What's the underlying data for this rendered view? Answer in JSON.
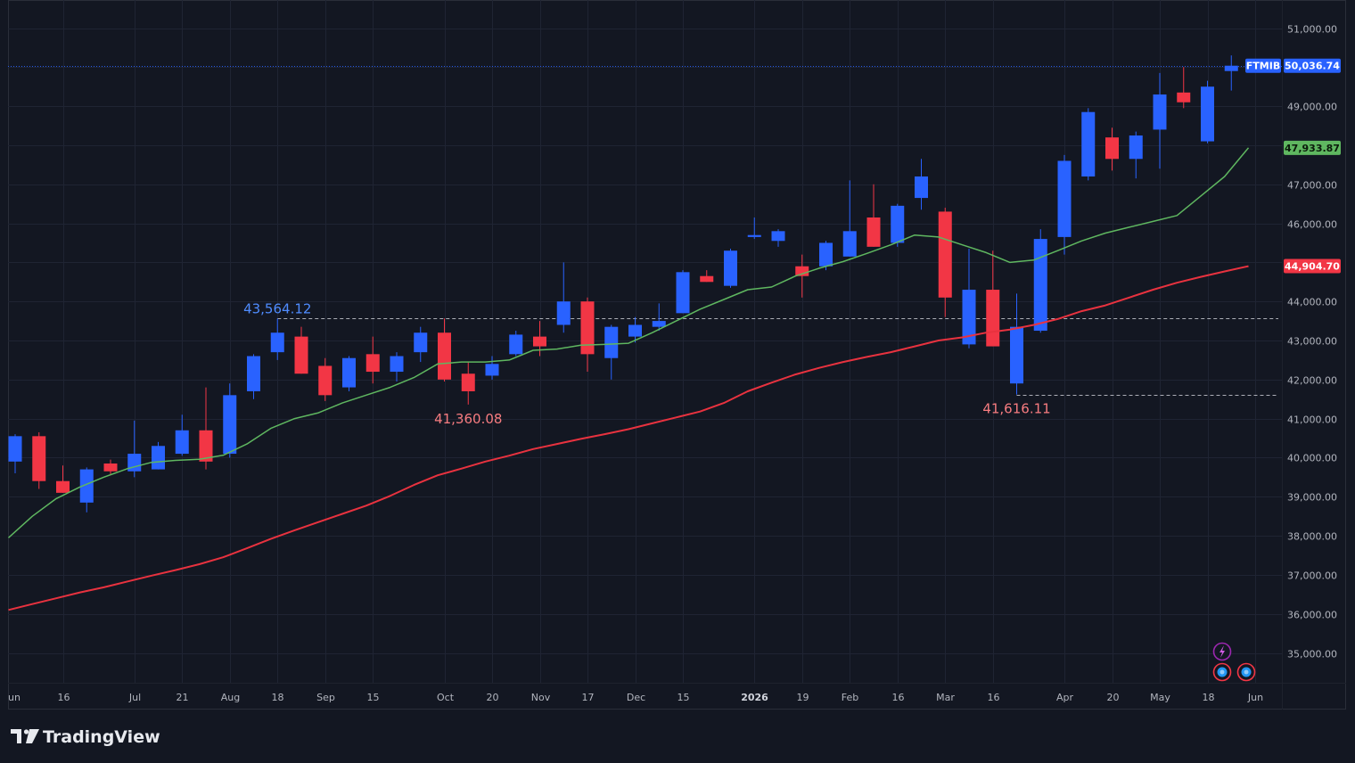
{
  "app": {
    "brand": "TradingView"
  },
  "colors": {
    "background": "#131722",
    "grid": "#1f2433",
    "up_candle": "#2962ff",
    "down_candle": "#f23645",
    "sma_fast": "#5fb760",
    "sma_slow": "#e8323f",
    "ref_line": "#c7c9d0",
    "high_label": "#4f8cff",
    "low_label": "#f77c80"
  },
  "chart_data": {
    "type": "candlestick",
    "symbol": "FTMIB",
    "interval": "weekly",
    "ylim": [
      34400,
      51800
    ],
    "y_ticks": [
      35000,
      36000,
      37000,
      38000,
      39000,
      40000,
      41000,
      42000,
      43000,
      44000,
      45000,
      46000,
      47000,
      48000,
      49000,
      50000,
      51000
    ],
    "y_tick_labels": [
      "35,000.00",
      "36,000.00",
      "37,000.00",
      "38,000.00",
      "39,000.00",
      "40,000.00",
      "41,000.00",
      "42,000.00",
      "43,000.00",
      "44,000.00",
      "45,000.00",
      "46,000.00",
      "47,000.00",
      "48,000.00",
      "49,000.00",
      "",
      "51,000.00"
    ],
    "x_ticks": [
      {
        "label": "un",
        "index": -0.25,
        "bold": false
      },
      {
        "label": "16",
        "index": 2,
        "bold": false
      },
      {
        "label": "Jul",
        "index": 5,
        "bold": false
      },
      {
        "label": "21",
        "index": 7,
        "bold": false
      },
      {
        "label": "Aug",
        "index": 9,
        "bold": false
      },
      {
        "label": "18",
        "index": 11,
        "bold": false
      },
      {
        "label": "Sep",
        "index": 13,
        "bold": false
      },
      {
        "label": "15",
        "index": 15,
        "bold": false
      },
      {
        "label": "Oct",
        "index": 18,
        "bold": false
      },
      {
        "label": "20",
        "index": 20,
        "bold": false
      },
      {
        "label": "Nov",
        "index": 22,
        "bold": false
      },
      {
        "label": "17",
        "index": 24,
        "bold": false
      },
      {
        "label": "Dec",
        "index": 26,
        "bold": false
      },
      {
        "label": "15",
        "index": 28,
        "bold": false
      },
      {
        "label": "2026",
        "index": 31,
        "bold": true
      },
      {
        "label": "19",
        "index": 33,
        "bold": false
      },
      {
        "label": "Feb",
        "index": 35,
        "bold": false
      },
      {
        "label": "16",
        "index": 37,
        "bold": false
      },
      {
        "label": "Mar",
        "index": 39,
        "bold": false
      },
      {
        "label": "16",
        "index": 41,
        "bold": false
      },
      {
        "label": "Apr",
        "index": 44,
        "bold": false
      },
      {
        "label": "20",
        "index": 46,
        "bold": false
      },
      {
        "label": "May",
        "index": 48,
        "bold": false
      },
      {
        "label": "18",
        "index": 50,
        "bold": false
      },
      {
        "label": "Jun",
        "index": 52,
        "bold": false
      }
    ],
    "candles": [
      {
        "o": 39900,
        "h": 40600,
        "l": 39600,
        "c": 40550
      },
      {
        "o": 40550,
        "h": 40650,
        "l": 39200,
        "c": 39400
      },
      {
        "o": 39400,
        "h": 39800,
        "l": 39100,
        "c": 39100
      },
      {
        "o": 38850,
        "h": 39750,
        "l": 38600,
        "c": 39700
      },
      {
        "o": 39850,
        "h": 39950,
        "l": 39550,
        "c": 39650
      },
      {
        "o": 39650,
        "h": 40950,
        "l": 39500,
        "c": 40100
      },
      {
        "o": 39700,
        "h": 40400,
        "l": 39700,
        "c": 40300
      },
      {
        "o": 40100,
        "h": 41100,
        "l": 40050,
        "c": 40700
      },
      {
        "o": 40700,
        "h": 41800,
        "l": 39700,
        "c": 39900
      },
      {
        "o": 40100,
        "h": 41900,
        "l": 40000,
        "c": 41600
      },
      {
        "o": 41700,
        "h": 42650,
        "l": 41500,
        "c": 42600
      },
      {
        "o": 42700,
        "h": 43564.12,
        "l": 42500,
        "c": 43200
      },
      {
        "o": 43100,
        "h": 43350,
        "l": 42150,
        "c": 42150
      },
      {
        "o": 42350,
        "h": 42550,
        "l": 41450,
        "c": 41600
      },
      {
        "o": 41800,
        "h": 42600,
        "l": 41700,
        "c": 42550
      },
      {
        "o": 42650,
        "h": 43100,
        "l": 41900,
        "c": 42200
      },
      {
        "o": 42200,
        "h": 42700,
        "l": 41950,
        "c": 42600
      },
      {
        "o": 42700,
        "h": 43350,
        "l": 42450,
        "c": 43200
      },
      {
        "o": 43200,
        "h": 43564.12,
        "l": 41950,
        "c": 42000
      },
      {
        "o": 42150,
        "h": 42450,
        "l": 41360.08,
        "c": 41700
      },
      {
        "o": 42100,
        "h": 42600,
        "l": 42000,
        "c": 42400
      },
      {
        "o": 42650,
        "h": 43250,
        "l": 42600,
        "c": 43150
      },
      {
        "o": 43100,
        "h": 43500,
        "l": 42600,
        "c": 42850
      },
      {
        "o": 43400,
        "h": 45000,
        "l": 43200,
        "c": 44000
      },
      {
        "o": 44000,
        "h": 44100,
        "l": 42200,
        "c": 42650
      },
      {
        "o": 42550,
        "h": 43400,
        "l": 42000,
        "c": 43350
      },
      {
        "o": 43100,
        "h": 43600,
        "l": 42950,
        "c": 43400
      },
      {
        "o": 43350,
        "h": 43950,
        "l": 43250,
        "c": 43500
      },
      {
        "o": 43700,
        "h": 44800,
        "l": 43700,
        "c": 44750
      },
      {
        "o": 44650,
        "h": 44800,
        "l": 44500,
        "c": 44500
      },
      {
        "o": 44400,
        "h": 45350,
        "l": 44350,
        "c": 45300
      },
      {
        "o": 45650,
        "h": 46150,
        "l": 45600,
        "c": 45700
      },
      {
        "o": 45550,
        "h": 45850,
        "l": 45400,
        "c": 45800
      },
      {
        "o": 44900,
        "h": 45200,
        "l": 44100,
        "c": 44650
      },
      {
        "o": 44900,
        "h": 45550,
        "l": 44800,
        "c": 45500
      },
      {
        "o": 45150,
        "h": 47100,
        "l": 45150,
        "c": 45800
      },
      {
        "o": 46150,
        "h": 47000,
        "l": 45400,
        "c": 45400
      },
      {
        "o": 45500,
        "h": 46500,
        "l": 45400,
        "c": 46450
      },
      {
        "o": 46650,
        "h": 47650,
        "l": 46350,
        "c": 47200
      },
      {
        "o": 46300,
        "h": 46400,
        "l": 43600,
        "c": 44100
      },
      {
        "o": 42900,
        "h": 45350,
        "l": 42800,
        "c": 44300
      },
      {
        "o": 44300,
        "h": 45300,
        "l": 42850,
        "c": 42850
      },
      {
        "o": 41900,
        "h": 44200,
        "l": 41616.11,
        "c": 43350
      },
      {
        "o": 43250,
        "h": 45850,
        "l": 43200,
        "c": 45600
      },
      {
        "o": 45650,
        "h": 47750,
        "l": 45200,
        "c": 47600
      },
      {
        "o": 47200,
        "h": 48950,
        "l": 47100,
        "c": 48850
      },
      {
        "o": 48200,
        "h": 48450,
        "l": 47350,
        "c": 47650
      },
      {
        "o": 47650,
        "h": 48350,
        "l": 47150,
        "c": 48250
      },
      {
        "o": 48400,
        "h": 49850,
        "l": 47400,
        "c": 49300
      },
      {
        "o": 49350,
        "h": 50000,
        "l": 48950,
        "c": 49100
      },
      {
        "o": 48100,
        "h": 49650,
        "l": 48050,
        "c": 49500
      },
      {
        "o": 49900,
        "h": 50300,
        "l": 49400,
        "c": 50036.74
      }
    ],
    "sma_fast": [
      37950,
      38500,
      38950,
      39250,
      39500,
      39720,
      39880,
      39930,
      39960,
      40060,
      40350,
      40750,
      41000,
      41150,
      41400,
      41600,
      41800,
      42050,
      42400,
      42450,
      42450,
      42500,
      42750,
      42780,
      42880,
      42900,
      42930,
      43200,
      43500,
      43800,
      44050,
      44300,
      44370,
      44650,
      44850,
      45020,
      45230,
      45450,
      45700,
      45650,
      45450,
      45250,
      45000,
      45060,
      45300,
      45550,
      45750,
      45900,
      46050,
      46200,
      46700,
      47200,
      47933.87
    ],
    "sma_slow": [
      36100,
      36250,
      36400,
      36550,
      36680,
      36830,
      36980,
      37120,
      37270,
      37450,
      37680,
      37920,
      38140,
      38350,
      38560,
      38770,
      39020,
      39300,
      39550,
      39720,
      39900,
      40050,
      40220,
      40350,
      40480,
      40600,
      40730,
      40880,
      41030,
      41180,
      41400,
      41700,
      41920,
      42130,
      42300,
      42450,
      42580,
      42700,
      42850,
      43000,
      43080,
      43200,
      43280,
      43400,
      43550,
      43750,
      43900,
      44100,
      44300,
      44480,
      44630,
      44770,
      44904.7
    ],
    "reference_lines": [
      {
        "value": 43564.12,
        "label": "43,564.12",
        "kind": "high"
      },
      {
        "value": 41616.11,
        "label": "41,616.11",
        "kind": "low"
      }
    ],
    "annotations": [
      {
        "text": "43,564.12",
        "value": 43564.12,
        "index": 11,
        "kind": "high"
      },
      {
        "text": "41,360.08",
        "value": 41360.08,
        "index": 19,
        "kind": "low"
      },
      {
        "text": "41,616.11",
        "value": 41616.11,
        "index": 42,
        "kind": "low"
      }
    ],
    "price_badges": [
      {
        "symbol": "FTMIB",
        "text": "50,036.74",
        "value": 50036.74,
        "color": "#2962ff"
      },
      {
        "symbol": "",
        "text": "47,933.87",
        "value": 47933.87,
        "color": "#5fb760"
      },
      {
        "symbol": "",
        "text": "44,904.70",
        "value": 44904.7,
        "color": "#f23645"
      }
    ],
    "grid": true
  }
}
